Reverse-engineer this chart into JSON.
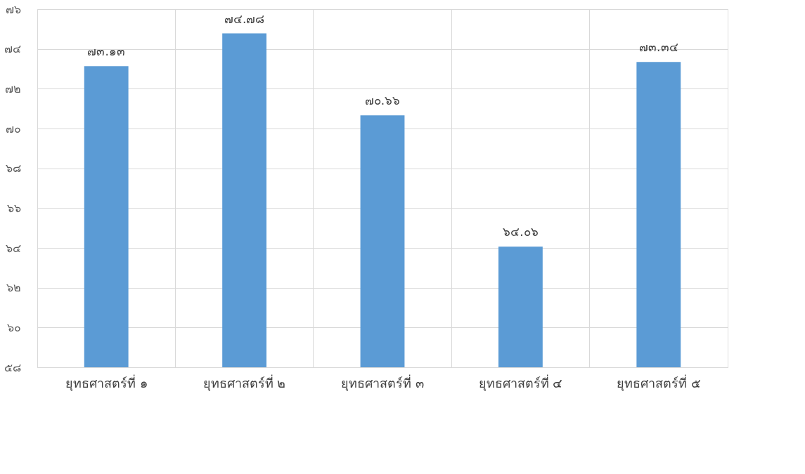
{
  "chart_data": {
    "type": "bar",
    "categories": [
      "ยุทธศาสตร์ที่ ๑",
      "ยุทธศาสตร์ที่ ๒",
      "ยุทธศาสตร์ที่ ๓",
      "ยุทธศาสตร์ที่ ๔",
      "ยุทธศาสตร์ที่ ๕"
    ],
    "values": [
      73.13,
      74.78,
      70.66,
      64.06,
      73.34
    ],
    "value_labels": [
      "๗๓.๑๓",
      "๗๔.๗๘",
      "๗๐.๖๖",
      "๖๔.๐๖",
      "๗๓.๓๔"
    ],
    "color": "#5b9bd5",
    "ylim": [
      58,
      76
    ],
    "yticks": [
      {
        "value": 58,
        "label": "๕๘"
      },
      {
        "value": 60,
        "label": "๖๐"
      },
      {
        "value": 62,
        "label": "๖๒"
      },
      {
        "value": 64,
        "label": "๖๔"
      },
      {
        "value": 66,
        "label": "๖๖"
      },
      {
        "value": 68,
        "label": "๖๘"
      },
      {
        "value": 70,
        "label": "๗๐"
      },
      {
        "value": 72,
        "label": "๗๒"
      },
      {
        "value": 74,
        "label": "๗๔"
      },
      {
        "value": 76,
        "label": "๗๖"
      }
    ],
    "grid": true
  }
}
